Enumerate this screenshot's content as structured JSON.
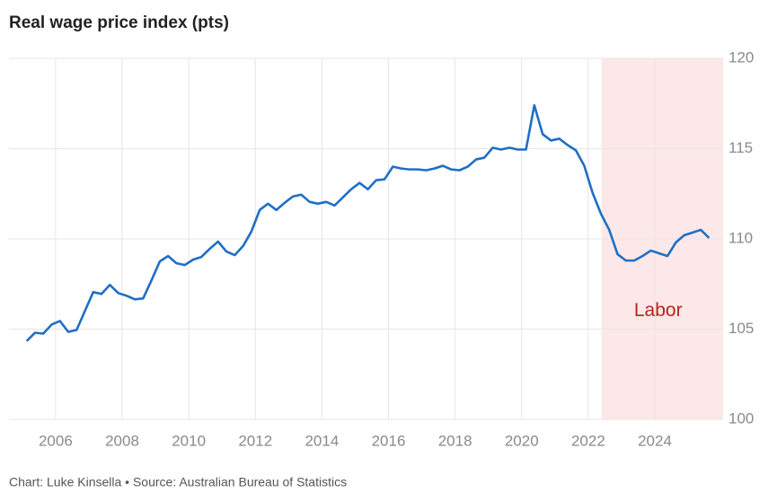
{
  "chart_data": {
    "type": "line",
    "title": "Real wage price index (pts)",
    "source": "Chart: Luke Kinsella • Source: Australian Bureau of Statistics",
    "x": [
      2005.13,
      2005.38,
      2005.63,
      2005.88,
      2006.13,
      2006.38,
      2006.63,
      2006.88,
      2007.13,
      2007.38,
      2007.63,
      2007.88,
      2008.13,
      2008.38,
      2008.63,
      2008.88,
      2009.13,
      2009.38,
      2009.63,
      2009.88,
      2010.13,
      2010.38,
      2010.63,
      2010.88,
      2011.13,
      2011.38,
      2011.63,
      2011.88,
      2012.13,
      2012.38,
      2012.63,
      2012.88,
      2013.13,
      2013.38,
      2013.63,
      2013.88,
      2014.13,
      2014.38,
      2014.63,
      2014.88,
      2015.13,
      2015.38,
      2015.63,
      2015.88,
      2016.13,
      2016.38,
      2016.63,
      2016.88,
      2017.13,
      2017.38,
      2017.63,
      2017.88,
      2018.13,
      2018.38,
      2018.63,
      2018.88,
      2019.13,
      2019.38,
      2019.63,
      2019.88,
      2020.13,
      2020.38,
      2020.63,
      2020.88,
      2021.13,
      2021.38,
      2021.63,
      2021.88,
      2022.13,
      2022.38,
      2022.63,
      2022.88,
      2023.13,
      2023.38,
      2023.63,
      2023.88,
      2024.13,
      2024.38,
      2024.63,
      2024.88,
      2025.13,
      2025.38,
      2025.63
    ],
    "series": [
      {
        "color": "#1f6fc5",
        "values": [
          104.34,
          104.8,
          104.75,
          105.25,
          105.45,
          104.85,
          104.95,
          106,
          107.05,
          106.95,
          107.45,
          107,
          106.85,
          106.65,
          106.7,
          107.7,
          108.75,
          109.05,
          108.65,
          108.55,
          108.85,
          109,
          109.45,
          109.85,
          109.3,
          109.1,
          109.6,
          110.4,
          111.6,
          111.95,
          111.6,
          112,
          112.35,
          112.45,
          112.05,
          111.95,
          112.05,
          111.85,
          112.3,
          112.75,
          113.1,
          112.75,
          113.25,
          113.3,
          114,
          113.9,
          113.85,
          113.85,
          113.8,
          113.9,
          114.05,
          113.85,
          113.8,
          114,
          114.4,
          114.5,
          115.05,
          114.95,
          115.05,
          114.95,
          114.95,
          117.4,
          115.8,
          115.45,
          115.55,
          115.2,
          114.9,
          114.05,
          112.55,
          111.4,
          110.5,
          109.15,
          108.8,
          108.8,
          109.05,
          109.35,
          109.2,
          109.05,
          109.8,
          110.2,
          110.35,
          110.5,
          110.05
        ]
      }
    ],
    "xlim": [
      2004.6,
      2026.05
    ],
    "xticks": [
      2006,
      2008,
      2010,
      2012,
      2014,
      2016,
      2018,
      2020,
      2022,
      2024
    ],
    "ylim": [
      100,
      120
    ],
    "yticks": [
      100,
      105,
      110,
      115,
      120
    ],
    "grid": true,
    "shaded_region": {
      "from": 2022.4,
      "color": "#fce8e8",
      "label": "Labor",
      "label_x": 2024.1,
      "label_y": 106,
      "label_color": "#b8241c"
    }
  }
}
